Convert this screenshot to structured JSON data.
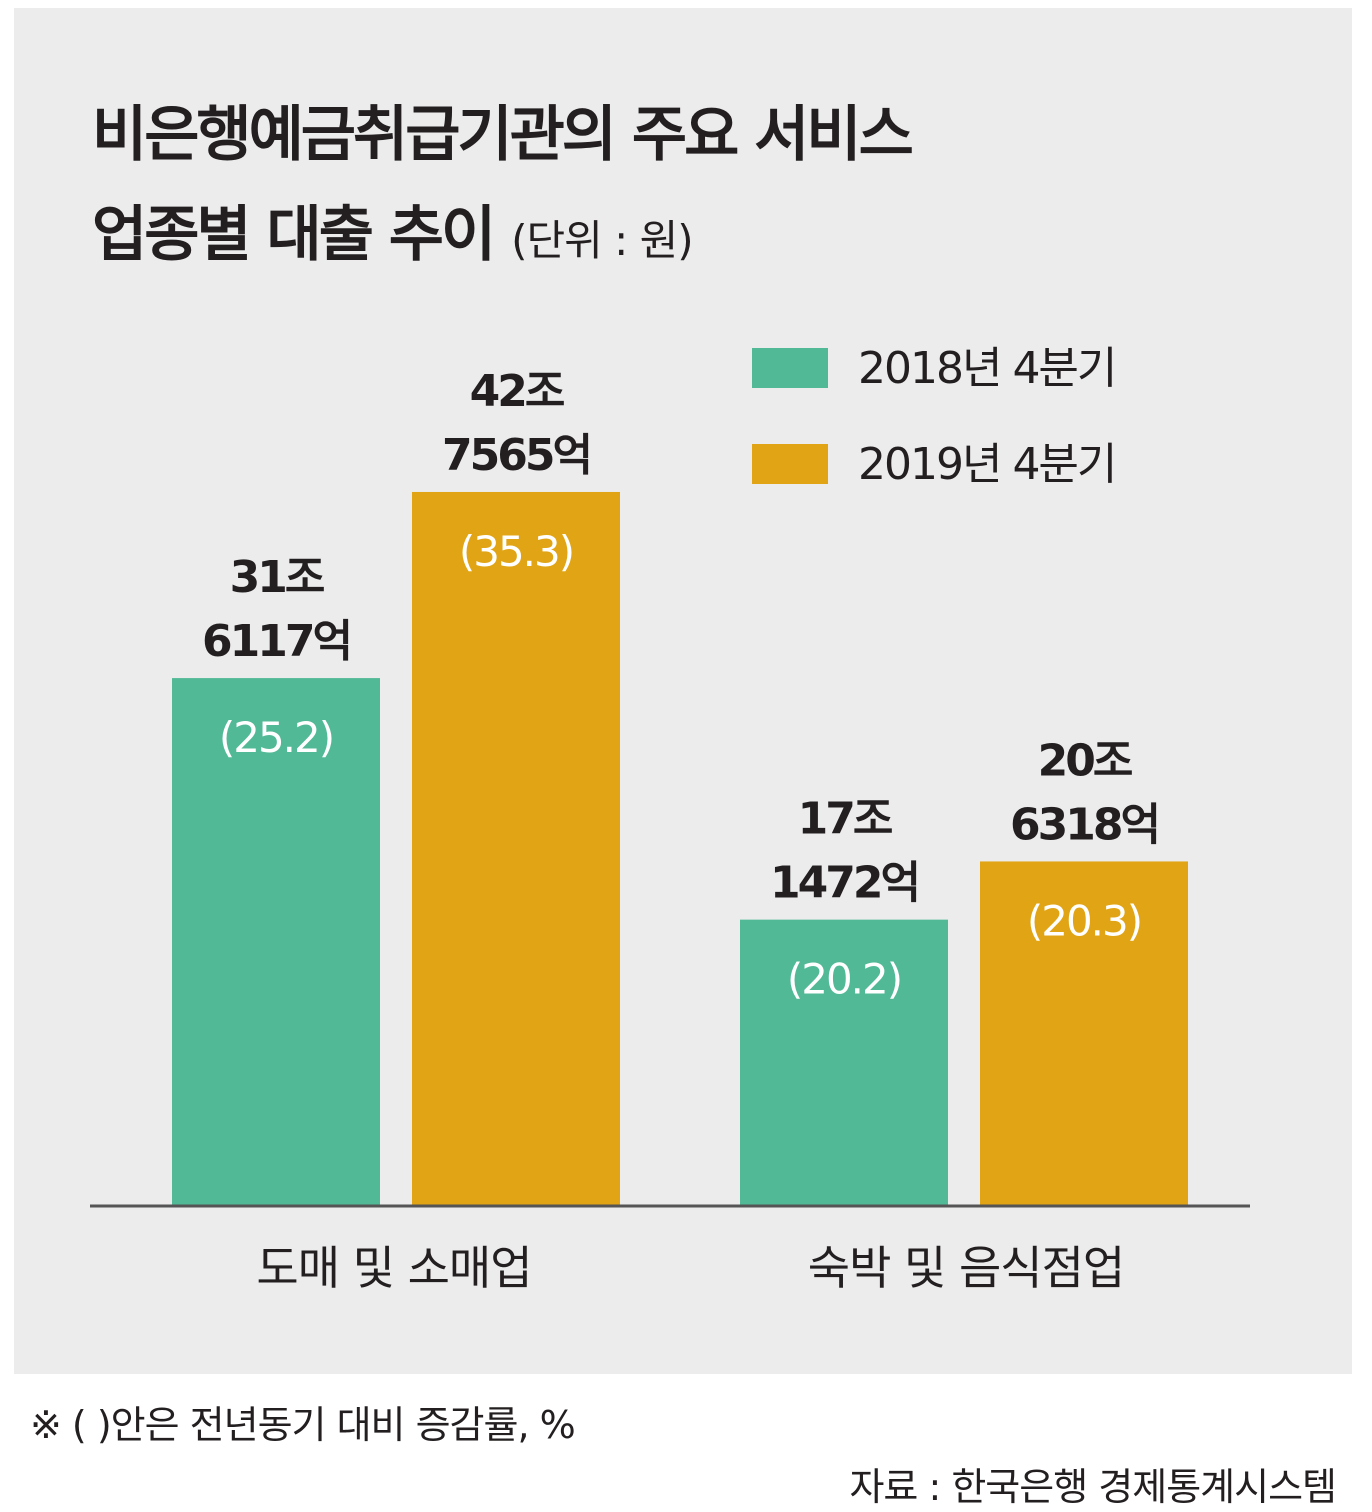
{
  "title": {
    "line1": "비은행예금취급기관의 주요 서비스",
    "line2": "업종별 대출 추이",
    "unit": "(단위 : 원)"
  },
  "colors": {
    "series2018": "#52b997",
    "series2019": "#e0a415",
    "axis": "#555555"
  },
  "chart_data": {
    "type": "bar",
    "title": "비은행예금취급기관의 주요 서비스 업종별 대출 추이",
    "unit": "원",
    "categories": [
      "도매 및 소매업",
      "숙박 및 음식점업"
    ],
    "legend_position": "top-right",
    "grid": false,
    "ylim": [
      0,
      45
    ],
    "series": [
      {
        "name": "2018년 4분기",
        "values": [
          31.6117,
          17.1472
        ],
        "value_labels": [
          [
            "31조",
            "6117억"
          ],
          [
            "17조",
            "1472억"
          ]
        ],
        "pct_labels": [
          "(25.2)",
          "(20.2)"
        ]
      },
      {
        "name": "2019년 4분기",
        "values": [
          42.7565,
          20.6318
        ],
        "value_labels": [
          [
            "42조",
            "7565억"
          ],
          [
            "20조",
            "6318억"
          ]
        ],
        "pct_labels": [
          "(35.3)",
          "(20.3)"
        ]
      }
    ]
  },
  "footnote": "※ (   )안은 전년동기 대비 증감률, %",
  "source": "자료 : 한국은행 경제통계시스템"
}
